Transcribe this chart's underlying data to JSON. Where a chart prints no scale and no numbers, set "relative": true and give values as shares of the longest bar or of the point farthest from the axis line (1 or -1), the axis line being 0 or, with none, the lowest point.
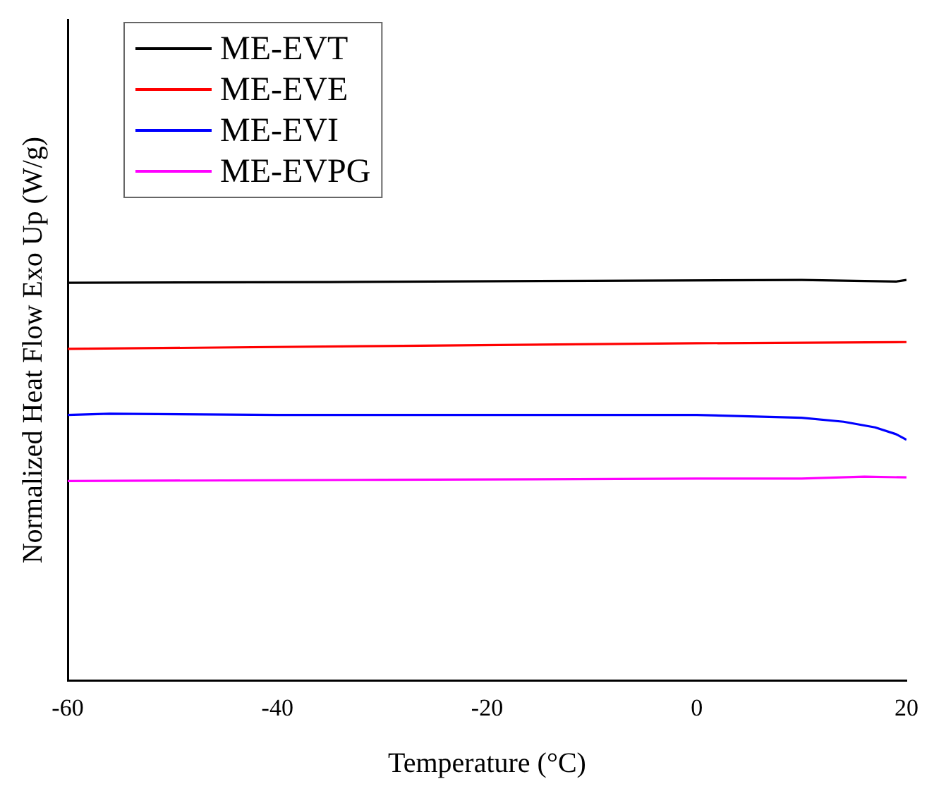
{
  "chart_data": {
    "type": "line",
    "xlabel": "Temperature (°C)",
    "ylabel": "Normalized Heat Flow Exo Up (W/g)",
    "relative": true,
    "xlim": [
      -60,
      20
    ],
    "xticks": [
      -60,
      -40,
      -20,
      0,
      20
    ],
    "grid": false,
    "legend": "top left",
    "marker": "none",
    "line_style": "solid",
    "series": [
      {
        "name": "ME-EVT",
        "color": "#000000",
        "x": [
          -60,
          -35,
          -10,
          10,
          19,
          20
        ],
        "values": [
          0.993,
          0.995,
          0.998,
          1.0,
          0.996,
          1.0
        ]
      },
      {
        "name": "ME-EVE",
        "color": "#ff0000",
        "x": [
          -60,
          -30,
          0,
          20
        ],
        "values": [
          0.828,
          0.835,
          0.842,
          0.845
        ]
      },
      {
        "name": "ME-EVI",
        "color": "#0000ff",
        "x": [
          -60,
          -56,
          -40,
          -20,
          0,
          10,
          14,
          17,
          19,
          20
        ],
        "values": [
          0.663,
          0.666,
          0.663,
          0.663,
          0.663,
          0.656,
          0.646,
          0.632,
          0.615,
          0.601
        ]
      },
      {
        "name": "ME-EVPG",
        "color": "#ff00ff",
        "x": [
          -60,
          -30,
          0,
          10,
          16,
          20
        ],
        "values": [
          0.498,
          0.501,
          0.504,
          0.504,
          0.509,
          0.507
        ]
      }
    ]
  }
}
